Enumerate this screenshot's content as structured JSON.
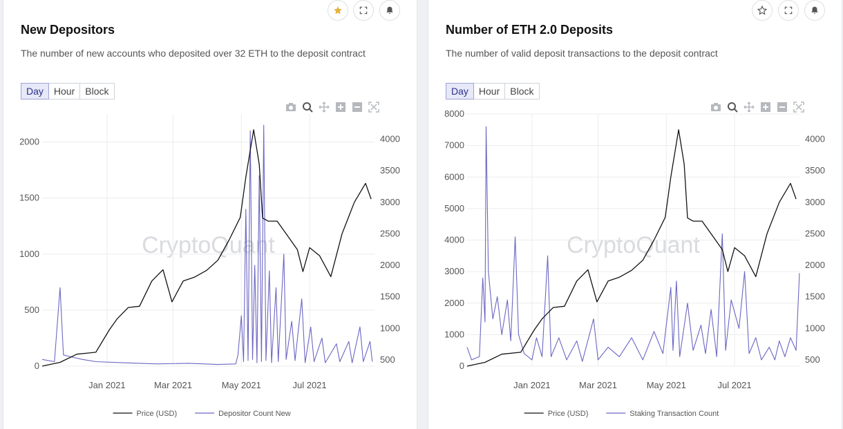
{
  "colors": {
    "price": "#111111",
    "series": "#6a66c2",
    "grid": "#ececec",
    "star_filled": "#e6b23c"
  },
  "cards": [
    {
      "title": "New Depositors",
      "description": "The number of new accounts who deposited over 32 ETH to the deposit contract",
      "tabs": [
        "Day",
        "Hour",
        "Block"
      ],
      "active_tab": "Day",
      "starred": true,
      "watermark": "CryptoQuant"
    },
    {
      "title": "Number of ETH 2.0 Deposits",
      "description": "The number of valid deposit transactions to the deposit contract",
      "tabs": [
        "Day",
        "Hour",
        "Block"
      ],
      "active_tab": "Day",
      "starred": false,
      "watermark": "CryptoQuant"
    }
  ],
  "chart_data": [
    {
      "type": "line",
      "x_ticks": [
        "Jan 2021",
        "Mar 2021",
        "May 2021",
        "Jul 2021"
      ],
      "x_tick_dates": [
        "2021-01-01",
        "2021-03-01",
        "2021-05-01",
        "2021-07-01"
      ],
      "x_range": [
        "2020-11-04",
        "2021-08-28"
      ],
      "y_left": {
        "ticks": [
          0,
          500,
          1000,
          1500,
          2000
        ],
        "range": [
          0,
          2250
        ]
      },
      "y_right": {
        "ticks": [
          500,
          1000,
          1500,
          2000,
          2500,
          3000,
          3500,
          4000
        ],
        "range": [
          400,
          4400
        ]
      },
      "legend_position": "bottom-center",
      "series": [
        {
          "name": "Price (USD)",
          "axis": "right",
          "points": [
            [
              "2020-11-04",
              400
            ],
            [
              "2020-11-20",
              460
            ],
            [
              "2020-12-05",
              590
            ],
            [
              "2020-12-22",
              620
            ],
            [
              "2021-01-03",
              975
            ],
            [
              "2021-01-10",
              1150
            ],
            [
              "2021-01-20",
              1330
            ],
            [
              "2021-01-30",
              1350
            ],
            [
              "2021-02-10",
              1750
            ],
            [
              "2021-02-20",
              1930
            ],
            [
              "2021-02-28",
              1420
            ],
            [
              "2021-03-10",
              1750
            ],
            [
              "2021-03-20",
              1810
            ],
            [
              "2021-03-31",
              1920
            ],
            [
              "2021-04-10",
              2080
            ],
            [
              "2021-04-20",
              2400
            ],
            [
              "2021-04-30",
              2760
            ],
            [
              "2021-05-05",
              3400
            ],
            [
              "2021-05-12",
              4150
            ],
            [
              "2021-05-17",
              3600
            ],
            [
              "2021-05-20",
              2750
            ],
            [
              "2021-05-25",
              2700
            ],
            [
              "2021-06-02",
              2700
            ],
            [
              "2021-06-10",
              2500
            ],
            [
              "2021-06-20",
              2250
            ],
            [
              "2021-06-25",
              1900
            ],
            [
              "2021-07-01",
              2280
            ],
            [
              "2021-07-10",
              2150
            ],
            [
              "2021-07-20",
              1820
            ],
            [
              "2021-07-30",
              2500
            ],
            [
              "2021-08-10",
              3000
            ],
            [
              "2021-08-20",
              3300
            ],
            [
              "2021-08-25",
              3050
            ]
          ]
        },
        {
          "name": "Depositor Count New",
          "axis": "left",
          "points": [
            [
              "2020-11-04",
              60
            ],
            [
              "2020-11-15",
              40
            ],
            [
              "2020-11-20",
              700
            ],
            [
              "2020-11-23",
              100
            ],
            [
              "2020-12-01",
              80
            ],
            [
              "2020-12-10",
              60
            ],
            [
              "2020-12-22",
              40
            ],
            [
              "2021-01-15",
              30
            ],
            [
              "2021-02-15",
              20
            ],
            [
              "2021-03-15",
              25
            ],
            [
              "2021-04-10",
              15
            ],
            [
              "2021-04-26",
              20
            ],
            [
              "2021-04-28",
              100
            ],
            [
              "2021-05-01",
              450
            ],
            [
              "2021-05-03",
              40
            ],
            [
              "2021-05-05",
              1400
            ],
            [
              "2021-05-07",
              50
            ],
            [
              "2021-05-09",
              2100
            ],
            [
              "2021-05-11",
              60
            ],
            [
              "2021-05-13",
              900
            ],
            [
              "2021-05-15",
              30
            ],
            [
              "2021-05-17",
              1700
            ],
            [
              "2021-05-19",
              40
            ],
            [
              "2021-05-21",
              2150
            ],
            [
              "2021-05-23",
              50
            ],
            [
              "2021-05-26",
              850
            ],
            [
              "2021-05-28",
              30
            ],
            [
              "2021-06-01",
              700
            ],
            [
              "2021-06-03",
              40
            ],
            [
              "2021-06-08",
              1000
            ],
            [
              "2021-06-10",
              60
            ],
            [
              "2021-06-15",
              400
            ],
            [
              "2021-06-18",
              50
            ],
            [
              "2021-06-24",
              600
            ],
            [
              "2021-06-27",
              30
            ],
            [
              "2021-07-02",
              350
            ],
            [
              "2021-07-05",
              40
            ],
            [
              "2021-07-12",
              250
            ],
            [
              "2021-07-15",
              30
            ],
            [
              "2021-07-25",
              200
            ],
            [
              "2021-07-28",
              40
            ],
            [
              "2021-08-05",
              220
            ],
            [
              "2021-08-08",
              30
            ],
            [
              "2021-08-15",
              350
            ],
            [
              "2021-08-18",
              40
            ],
            [
              "2021-08-24",
              220
            ],
            [
              "2021-08-26",
              40
            ]
          ]
        }
      ]
    },
    {
      "type": "line",
      "x_ticks": [
        "Jan 2021",
        "Mar 2021",
        "May 2021",
        "Jul 2021"
      ],
      "x_tick_dates": [
        "2021-01-01",
        "2021-03-01",
        "2021-05-01",
        "2021-07-01"
      ],
      "x_range": [
        "2020-11-04",
        "2021-08-28"
      ],
      "y_left": {
        "ticks": [
          0,
          1000,
          2000,
          3000,
          4000,
          5000,
          6000,
          7000,
          8000
        ],
        "range": [
          0,
          8000
        ]
      },
      "y_right": {
        "ticks": [
          500,
          1000,
          1500,
          2000,
          2500,
          3000,
          3500,
          4000
        ],
        "range": [
          400,
          4400
        ]
      },
      "legend_position": "bottom-center",
      "series": [
        {
          "name": "Price (USD)",
          "axis": "right",
          "points": [
            [
              "2020-11-04",
              400
            ],
            [
              "2020-11-20",
              460
            ],
            [
              "2020-12-05",
              590
            ],
            [
              "2020-12-22",
              620
            ],
            [
              "2021-01-03",
              975
            ],
            [
              "2021-01-10",
              1150
            ],
            [
              "2021-01-20",
              1330
            ],
            [
              "2021-01-30",
              1350
            ],
            [
              "2021-02-10",
              1750
            ],
            [
              "2021-02-20",
              1930
            ],
            [
              "2021-02-28",
              1420
            ],
            [
              "2021-03-10",
              1750
            ],
            [
              "2021-03-20",
              1810
            ],
            [
              "2021-03-31",
              1920
            ],
            [
              "2021-04-10",
              2080
            ],
            [
              "2021-04-20",
              2400
            ],
            [
              "2021-04-30",
              2760
            ],
            [
              "2021-05-05",
              3400
            ],
            [
              "2021-05-12",
              4150
            ],
            [
              "2021-05-17",
              3600
            ],
            [
              "2021-05-20",
              2750
            ],
            [
              "2021-05-25",
              2700
            ],
            [
              "2021-06-02",
              2700
            ],
            [
              "2021-06-10",
              2500
            ],
            [
              "2021-06-20",
              2250
            ],
            [
              "2021-06-25",
              1900
            ],
            [
              "2021-07-01",
              2280
            ],
            [
              "2021-07-10",
              2150
            ],
            [
              "2021-07-20",
              1820
            ],
            [
              "2021-07-30",
              2500
            ],
            [
              "2021-08-10",
              3000
            ],
            [
              "2021-08-20",
              3300
            ],
            [
              "2021-08-25",
              3050
            ]
          ]
        },
        {
          "name": "Staking Transaction Count",
          "axis": "left",
          "points": [
            [
              "2020-11-04",
              600
            ],
            [
              "2020-11-08",
              200
            ],
            [
              "2020-11-15",
              300
            ],
            [
              "2020-11-18",
              2800
            ],
            [
              "2020-11-20",
              1400
            ],
            [
              "2020-11-21",
              7600
            ],
            [
              "2020-11-23",
              3000
            ],
            [
              "2020-11-27",
              1500
            ],
            [
              "2020-12-01",
              2200
            ],
            [
              "2020-12-05",
              1000
            ],
            [
              "2020-12-10",
              2100
            ],
            [
              "2020-12-13",
              800
            ],
            [
              "2020-12-17",
              4100
            ],
            [
              "2020-12-20",
              1000
            ],
            [
              "2020-12-25",
              400
            ],
            [
              "2021-01-01",
              200
            ],
            [
              "2021-01-05",
              900
            ],
            [
              "2021-01-10",
              300
            ],
            [
              "2021-01-15",
              3500
            ],
            [
              "2021-01-18",
              300
            ],
            [
              "2021-01-25",
              900
            ],
            [
              "2021-02-01",
              200
            ],
            [
              "2021-02-10",
              800
            ],
            [
              "2021-02-15",
              150
            ],
            [
              "2021-02-25",
              1500
            ],
            [
              "2021-03-01",
              200
            ],
            [
              "2021-03-10",
              600
            ],
            [
              "2021-03-20",
              300
            ],
            [
              "2021-03-31",
              900
            ],
            [
              "2021-04-10",
              200
            ],
            [
              "2021-04-20",
              1100
            ],
            [
              "2021-04-28",
              400
            ],
            [
              "2021-05-05",
              2500
            ],
            [
              "2021-05-07",
              500
            ],
            [
              "2021-05-10",
              2700
            ],
            [
              "2021-05-13",
              300
            ],
            [
              "2021-05-20",
              2000
            ],
            [
              "2021-05-25",
              500
            ],
            [
              "2021-06-01",
              1300
            ],
            [
              "2021-06-05",
              400
            ],
            [
              "2021-06-10",
              1800
            ],
            [
              "2021-06-15",
              300
            ],
            [
              "2021-06-20",
              4200
            ],
            [
              "2021-06-23",
              500
            ],
            [
              "2021-06-28",
              2100
            ],
            [
              "2021-07-05",
              1200
            ],
            [
              "2021-07-10",
              3000
            ],
            [
              "2021-07-14",
              400
            ],
            [
              "2021-07-20",
              900
            ],
            [
              "2021-07-25",
              200
            ],
            [
              "2021-08-01",
              600
            ],
            [
              "2021-08-06",
              200
            ],
            [
              "2021-08-10",
              800
            ],
            [
              "2021-08-15",
              300
            ],
            [
              "2021-08-20",
              900
            ],
            [
              "2021-08-25",
              500
            ],
            [
              "2021-08-28",
              2950
            ]
          ]
        }
      ]
    }
  ]
}
